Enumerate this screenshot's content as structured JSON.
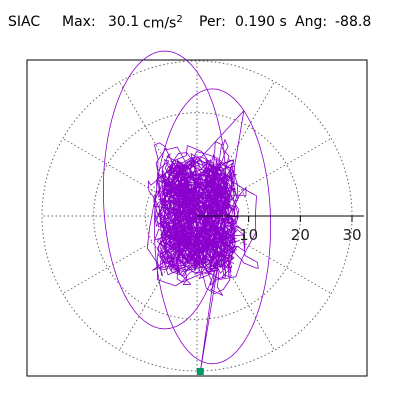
{
  "header": {
    "station": "SIAC",
    "max_label": "Max:",
    "max_value": "30.1",
    "max_unit": "cm/s",
    "max_unit_exp": "2",
    "per_label": "Per:",
    "per_value": "0.190 s",
    "ang_label": "Ang:",
    "ang_value": "-88.8"
  },
  "chart_data": {
    "type": "polar-particle-motion",
    "max_amplitude": 30.1,
    "max_unit": "cm/s^2",
    "period_s": 0.19,
    "angle_deg": -88.8,
    "radial_ticks": [
      10,
      20,
      30
    ],
    "radial_range": [
      0,
      30
    ],
    "ring_count": 3,
    "spoke_step_deg": 30,
    "grid": true,
    "colors": {
      "trace": "#8a00cc",
      "grid": "#666666",
      "axis": "#000000",
      "max_marker": "#009966"
    },
    "max_point": {
      "r": 30.1,
      "angle_deg": -88.8
    },
    "envelope": {
      "core_rx": 5.5,
      "core_ry": 9,
      "mid_rx": 12,
      "mid_ry": 17,
      "outer_rx": 12.5,
      "outer_ry": 28
    }
  }
}
